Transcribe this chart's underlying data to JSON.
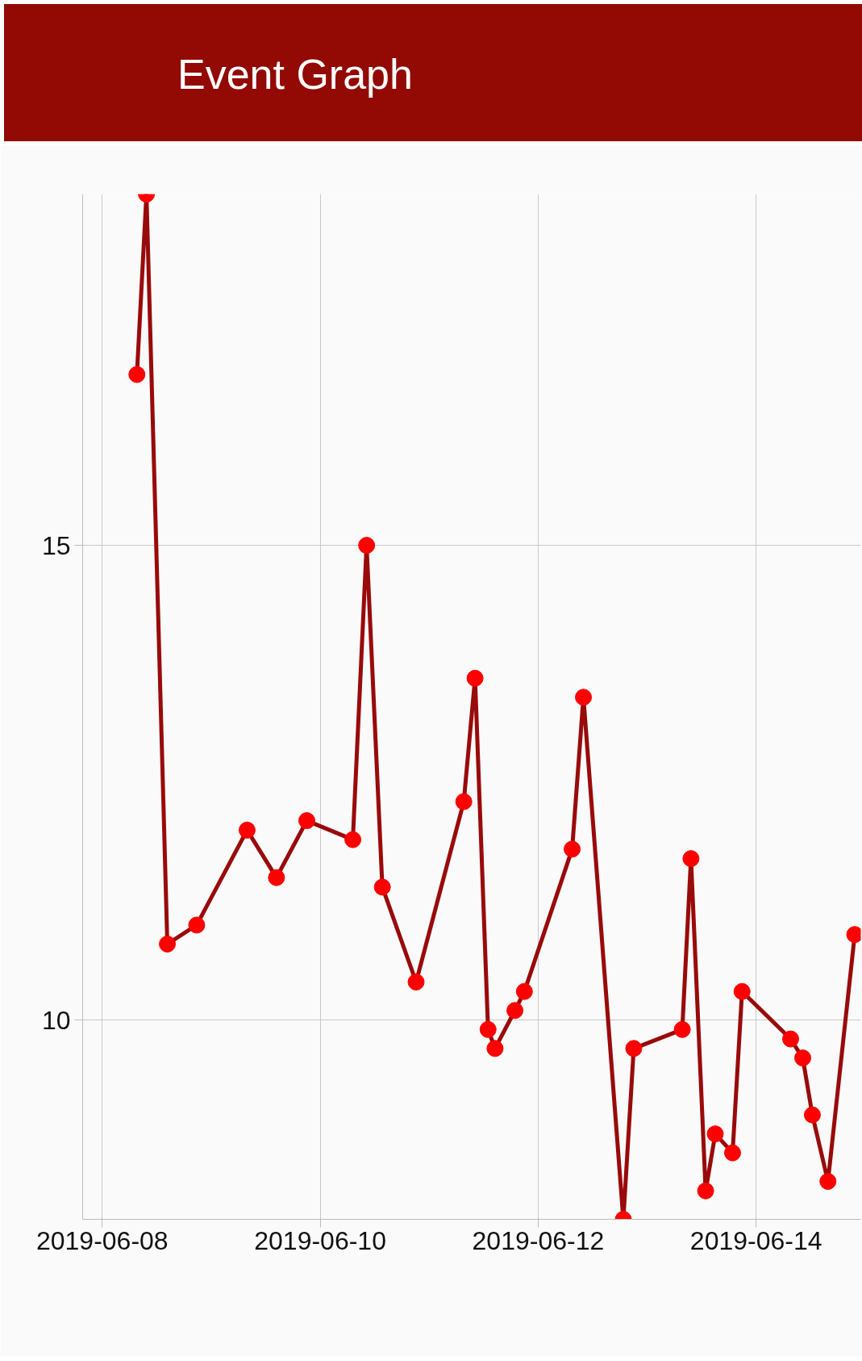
{
  "chart_data": {
    "type": "line",
    "title": "Event Graph",
    "x": [
      "2019-06-08T07:38",
      "2019-06-08T09:44",
      "2019-06-08T14:20",
      "2019-06-08T20:48",
      "2019-06-09T07:54",
      "2019-06-09T14:22",
      "2019-06-09T21:03",
      "2019-06-10T07:11",
      "2019-06-10T10:13",
      "2019-06-10T13:41",
      "2019-06-10T21:07",
      "2019-06-11T07:37",
      "2019-06-11T10:06",
      "2019-06-11T12:58",
      "2019-06-11T14:30",
      "2019-06-11T18:53",
      "2019-06-11T20:58",
      "2019-06-12T07:29",
      "2019-06-12T09:58",
      "2019-06-12T18:45",
      "2019-06-12T21:03",
      "2019-06-13T07:44",
      "2019-06-13T09:39",
      "2019-06-13T12:53",
      "2019-06-13T15:00",
      "2019-06-13T18:49",
      "2019-06-13T20:54",
      "2019-06-14T07:36",
      "2019-06-14T10:16",
      "2019-06-14T12:23",
      "2019-06-14T15:49",
      "2019-06-14T21:43"
    ],
    "series": [
      {
        "color": "#990a0a",
        "values": [
          16.8,
          18.7,
          10.8,
          11.0,
          12.0,
          11.5,
          12.1,
          11.9,
          15.0,
          11.4,
          10.4,
          12.3,
          13.6,
          9.9,
          9.7,
          10.1,
          10.3,
          11.8,
          13.4,
          7.9,
          9.7,
          9.9,
          11.7,
          8.2,
          8.8,
          8.6,
          10.3,
          9.8,
          9.6,
          9.0,
          8.3,
          10.9
        ]
      }
    ],
    "xlim": [
      "2019-06-07T19:41",
      "2019-06-14T23:03"
    ],
    "xticks": [
      {
        "value": "2019-06-08",
        "label": "2019-06-08"
      },
      {
        "value": "2019-06-10",
        "label": "2019-06-10"
      },
      {
        "value": "2019-06-12",
        "label": "2019-06-12"
      },
      {
        "value": "2019-06-14",
        "label": "2019-06-14"
      }
    ],
    "ylim": [
      7.9,
      18.7
    ],
    "yticks": [
      10,
      15
    ],
    "grid": true,
    "marker": "circle",
    "line_style": "solid"
  }
}
